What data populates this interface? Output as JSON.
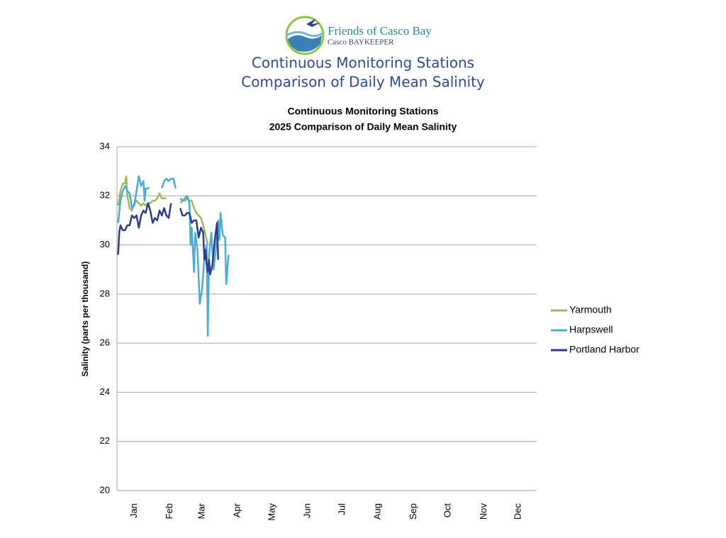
{
  "header": {
    "logo_text": "Friends of Casco Bay",
    "logo_subtext": "Casco BAYKEEPER",
    "heading": [
      "Continuous Monitoring Stations",
      "Comparison of Daily Mean Salinity"
    ]
  },
  "chart_data": {
    "type": "line",
    "title": "Continuous Monitoring Stations",
    "subtitle": "2025 Comparison of Daily Mean Salinity",
    "y_label": "Salinity (parts per thousand)",
    "xlim": [
      0,
      365
    ],
    "xticks": [
      {
        "value": 15,
        "label": "Jan"
      },
      {
        "value": 46,
        "label": "Feb"
      },
      {
        "value": 74,
        "label": "Mar"
      },
      {
        "value": 105,
        "label": "Apr"
      },
      {
        "value": 135,
        "label": "May"
      },
      {
        "value": 166,
        "label": "Jun"
      },
      {
        "value": 196,
        "label": "Jul"
      },
      {
        "value": 227,
        "label": "Aug"
      },
      {
        "value": 258,
        "label": "Sep"
      },
      {
        "value": 288,
        "label": "Oct"
      },
      {
        "value": 319,
        "label": "Nov"
      },
      {
        "value": 349,
        "label": "Dec"
      }
    ],
    "ylim": [
      20,
      34
    ],
    "yticks": [
      20,
      22,
      24,
      26,
      28,
      30,
      32,
      34
    ],
    "grid": true,
    "legend": "right",
    "series": [
      {
        "name": "Yarmouth",
        "color": "#9bbb59",
        "x": [
          1,
          3,
          5,
          7,
          8,
          9,
          11,
          13,
          15,
          17,
          19,
          21,
          23,
          25,
          27,
          29,
          31,
          33,
          35,
          37,
          38,
          39,
          41,
          43,
          48,
          55,
          57,
          59,
          61,
          63,
          65,
          67,
          69,
          71,
          73,
          75,
          77,
          79
        ],
        "values": [
          31.6,
          32.2,
          32.5,
          32.5,
          32.8,
          32.0,
          31.5,
          31.4,
          31.7,
          31.8,
          31.7,
          31.6,
          31.7,
          31.6,
          31.7,
          31.7,
          31.8,
          31.8,
          31.9,
          32.1,
          32.0,
          31.9,
          31.9,
          31.9,
          null,
          31.7,
          31.8,
          31.8,
          31.9,
          31.8,
          31.8,
          31.5,
          31.3,
          31.2,
          31.1,
          30.8,
          30.4,
          30.0
        ]
      },
      {
        "name": "Harpswell",
        "color": "#4bacd6",
        "x": [
          1,
          3,
          5,
          7,
          9,
          11,
          13,
          15,
          17,
          19,
          21,
          23,
          24,
          25,
          27,
          28,
          30,
          39,
          41,
          43,
          45,
          47,
          49,
          51,
          53,
          55,
          57,
          59,
          61,
          63,
          64,
          65,
          67,
          68,
          70,
          72,
          74,
          76,
          78,
          79,
          80,
          82,
          84,
          86,
          88,
          89,
          90,
          92,
          94,
          95,
          97
        ],
        "values": [
          30.9,
          31.8,
          32.2,
          32.4,
          32.2,
          32.1,
          31.5,
          31.6,
          32.2,
          32.8,
          32.4,
          32.6,
          31.8,
          32.3,
          32.3,
          32.35,
          null,
          32.3,
          32.6,
          32.7,
          32.6,
          32.7,
          32.7,
          32.3,
          null,
          31.9,
          31.8,
          31.9,
          32.0,
          31.7,
          30.0,
          30.7,
          28.9,
          30.5,
          29.8,
          27.6,
          28.2,
          29.5,
          30.0,
          26.3,
          29.5,
          30.5,
          29.0,
          29.8,
          31.0,
          30.2,
          31.3,
          30.4,
          30.3,
          28.4,
          29.6
        ]
      },
      {
        "name": "Portland Harbor",
        "color": "#2e3d8f",
        "x": [
          1,
          2,
          3,
          5,
          7,
          9,
          11,
          13,
          15,
          17,
          19,
          21,
          23,
          25,
          27,
          29,
          31,
          33,
          35,
          37,
          39,
          41,
          43,
          45,
          47,
          49,
          55,
          57,
          59,
          61,
          63,
          65,
          67,
          69,
          71,
          73,
          75,
          76,
          77,
          78,
          79,
          80,
          81,
          83,
          85,
          87,
          88
        ],
        "values": [
          29.6,
          30.5,
          30.8,
          30.6,
          30.6,
          30.8,
          30.8,
          31.2,
          31.1,
          31.2,
          30.7,
          31.2,
          31.4,
          31.3,
          31.7,
          31.4,
          30.9,
          31.1,
          31.0,
          31.4,
          31.2,
          31.5,
          31.2,
          31.1,
          31.7,
          null,
          31.5,
          31.2,
          31.2,
          31.3,
          31.3,
          30.9,
          31.0,
          31.0,
          30.3,
          30.7,
          30.5,
          29.4,
          29.8,
          29.2,
          28.9,
          29.4,
          28.8,
          29.2,
          30.2,
          30.9,
          29.4
        ]
      }
    ]
  }
}
